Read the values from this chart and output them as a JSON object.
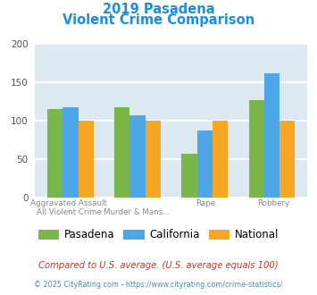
{
  "title_line1": "2019 Pasadena",
  "title_line2": "Violent Crime Comparison",
  "title_color": "#1a8fe0",
  "groups": {
    "Pasadena": [
      115,
      118,
      57,
      127
    ],
    "California": [
      118,
      107,
      87,
      162
    ],
    "National": [
      100,
      100,
      100,
      100
    ]
  },
  "colors": {
    "Pasadena": "#7ab648",
    "California": "#4da6e8",
    "National": "#f5a623"
  },
  "ylim": [
    0,
    200
  ],
  "yticks": [
    0,
    50,
    100,
    150,
    200
  ],
  "plot_bg": "#dce9f0",
  "grid_color": "#ffffff",
  "cat_top": [
    "Aggravated Assault",
    "",
    "Rape",
    "Robbery"
  ],
  "cat_bot": [
    "All Violent Crime",
    "Murder & Mans...",
    "",
    ""
  ],
  "footnote1": "Compared to U.S. average. (U.S. average equals 100)",
  "footnote1_color": "#c0392b",
  "footnote2": "© 2025 CityRating.com - https://www.cityrating.com/crime-statistics/",
  "footnote2_color": "#5588aa"
}
